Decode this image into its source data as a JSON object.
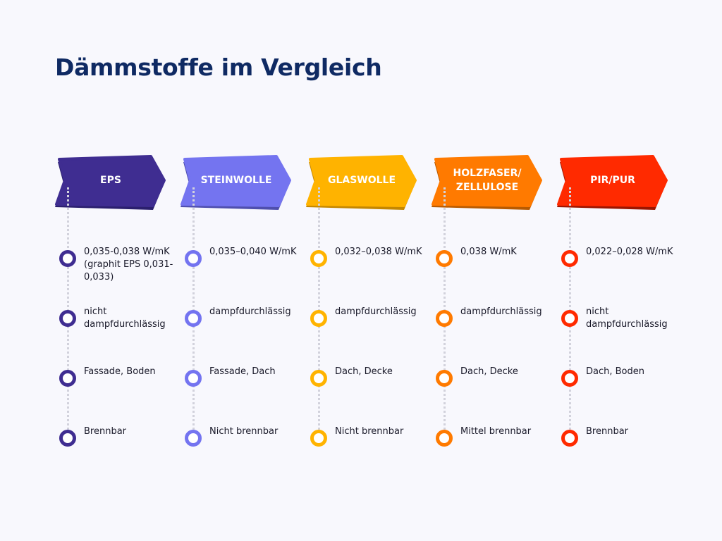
{
  "title": "Dämmstoffe im Vergleich",
  "columns": [
    {
      "label": "EPS",
      "color": "#3f2d91",
      "shadow": "#2b1f6e",
      "items": [
        "0,035-0,038 W/mK (graphit EPS 0,031-0,033)",
        "nicht dampfdurchlässig",
        "Fassade, Boden",
        "Brennbar"
      ]
    },
    {
      "label": "STEINWOLLE",
      "color": "#7474f0",
      "shadow": "#4f4fae",
      "items": [
        "0,035–0,040 W/mK",
        "dampfdurchlässig",
        "Fassade, Dach",
        "Nicht brennbar"
      ]
    },
    {
      "label": "GLASWOLLE",
      "color": "#ffb300",
      "shadow": "#c48700",
      "items": [
        "0,032–0,038 W/mK",
        "dampfdurchlässig",
        "Dach, Decke",
        "Nicht brennbar"
      ]
    },
    {
      "label": "HOLZFASER/ ZELLULOSE",
      "color": "#ff7a00",
      "shadow": "#b85a00",
      "items": [
        "0,038 W/mK",
        "dampfdurchlässig",
        "Dach, Decke",
        "Mittel brennbar"
      ]
    },
    {
      "label": "PIR/PUR",
      "color": "#ff2a00",
      "shadow": "#9c1500",
      "items": [
        "0,022–0,028 W/mK",
        "nicht dampfdurchlässig",
        "Dach, Boden",
        "Brennbar"
      ]
    }
  ]
}
